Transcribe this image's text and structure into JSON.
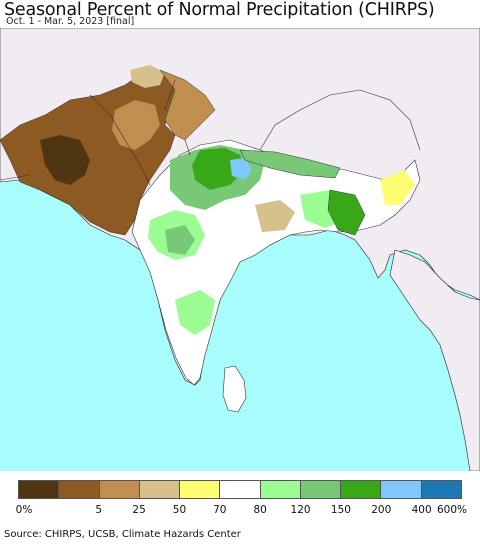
{
  "title": "Seasonal Percent of Normal Precipitation (CHIRPS)",
  "subtitle": "Oct. 1 - Mar. 5, 2023 [final]",
  "legend": {
    "colors": [
      "#4f3511",
      "#8c5a22",
      "#c08f50",
      "#d6c08c",
      "#fefe74",
      "#ffffff",
      "#9cfc94",
      "#78c878",
      "#38a818",
      "#80c8fc",
      "#1e78b4"
    ],
    "ticks": [
      "0%",
      "5",
      "25",
      "50",
      "70",
      "80",
      "120",
      "150",
      "200",
      "400",
      "600%"
    ]
  },
  "source": "Source: CHIRPS, UCSB, Climate Hazards Center"
}
